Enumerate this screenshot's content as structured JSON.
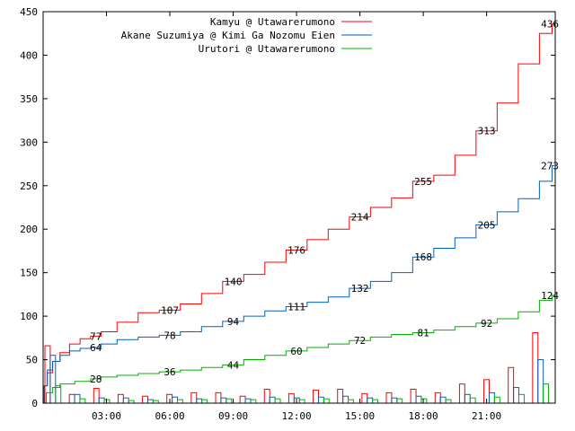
{
  "chart_data": {
    "type": "line",
    "title": "",
    "xlabel": "",
    "ylabel": "",
    "x_unit": "hours since 00:00",
    "xlim": [
      0,
      24.25
    ],
    "ylim": [
      0,
      450
    ],
    "grid": false,
    "legend_position": "top-right",
    "x_ticks": [
      {
        "value": 3,
        "label": "03:00"
      },
      {
        "value": 6,
        "label": "06:00"
      },
      {
        "value": 9,
        "label": "09:00"
      },
      {
        "value": 12,
        "label": "12:00"
      },
      {
        "value": 15,
        "label": "15:00"
      },
      {
        "value": 18,
        "label": "18:00"
      },
      {
        "value": 21,
        "label": "21:00"
      }
    ],
    "y_ticks": [
      0,
      50,
      100,
      150,
      200,
      250,
      300,
      350,
      400,
      450
    ],
    "series": [
      {
        "name": "Kamyu @ Utawarerumono",
        "color": "#ff0000",
        "points": [
          [
            0,
            0
          ],
          [
            0.1,
            20
          ],
          [
            0.3,
            35
          ],
          [
            0.6,
            48
          ],
          [
            1,
            58
          ],
          [
            1.5,
            68
          ],
          [
            2,
            74
          ],
          [
            2.5,
            77
          ],
          [
            3,
            82
          ],
          [
            4,
            93
          ],
          [
            5,
            104
          ],
          [
            6,
            107
          ],
          [
            7,
            114
          ],
          [
            8,
            126
          ],
          [
            9,
            140
          ],
          [
            10,
            148
          ],
          [
            11,
            162
          ],
          [
            12,
            176
          ],
          [
            13,
            188
          ],
          [
            14,
            200
          ],
          [
            15,
            214
          ],
          [
            16,
            225
          ],
          [
            17,
            236
          ],
          [
            18,
            255
          ],
          [
            19,
            262
          ],
          [
            20,
            285
          ],
          [
            21,
            313
          ],
          [
            22,
            345
          ],
          [
            23,
            390
          ],
          [
            24,
            425
          ],
          [
            24.2,
            436
          ]
        ],
        "labels": [
          [
            2.5,
            77
          ],
          [
            6,
            107
          ],
          [
            9,
            140
          ],
          [
            12,
            176
          ],
          [
            15,
            214
          ],
          [
            18,
            255
          ],
          [
            21,
            313
          ],
          [
            24.0,
            436
          ]
        ],
        "bars": [
          66,
          10,
          17,
          10,
          8,
          10,
          12,
          12,
          8,
          16,
          11,
          15,
          16,
          11,
          12,
          16,
          12,
          22,
          27,
          41,
          81
        ]
      },
      {
        "name": "Akane Suzumiya @ Kimi Ga Nozomu Eien",
        "color": "#0060c0",
        "points": [
          [
            0,
            0
          ],
          [
            0.1,
            20
          ],
          [
            0.3,
            38
          ],
          [
            0.6,
            48
          ],
          [
            1,
            55
          ],
          [
            1.5,
            60
          ],
          [
            2,
            63
          ],
          [
            2.5,
            64
          ],
          [
            3,
            68
          ],
          [
            4,
            73
          ],
          [
            5,
            76
          ],
          [
            6,
            78
          ],
          [
            7,
            82
          ],
          [
            8,
            88
          ],
          [
            9,
            94
          ],
          [
            10,
            100
          ],
          [
            11,
            106
          ],
          [
            12,
            111
          ],
          [
            13,
            116
          ],
          [
            14,
            122
          ],
          [
            15,
            132
          ],
          [
            16,
            140
          ],
          [
            17,
            150
          ],
          [
            18,
            168
          ],
          [
            19,
            178
          ],
          [
            20,
            190
          ],
          [
            21,
            205
          ],
          [
            22,
            220
          ],
          [
            23,
            235
          ],
          [
            24,
            255
          ],
          [
            24.2,
            273
          ]
        ],
        "labels": [
          [
            2.5,
            64
          ],
          [
            6,
            78
          ],
          [
            9,
            94
          ],
          [
            12,
            111
          ],
          [
            15,
            132
          ],
          [
            18,
            168
          ],
          [
            21,
            205
          ],
          [
            24.0,
            273
          ]
        ],
        "bars": [
          55,
          10,
          6,
          6,
          4,
          7,
          5,
          6,
          5,
          7,
          6,
          7,
          8,
          6,
          6,
          8,
          7,
          10,
          12,
          18,
          50
        ]
      },
      {
        "name": "Urutori @ Utawarerumono",
        "color": "#00b000",
        "points": [
          [
            0,
            0
          ],
          [
            0.3,
            12
          ],
          [
            0.6,
            18
          ],
          [
            1,
            22
          ],
          [
            2,
            25
          ],
          [
            2.5,
            28
          ],
          [
            3,
            30
          ],
          [
            4,
            32
          ],
          [
            5,
            34
          ],
          [
            6,
            36
          ],
          [
            7,
            38
          ],
          [
            8,
            41
          ],
          [
            9,
            44
          ],
          [
            10,
            50
          ],
          [
            11,
            55
          ],
          [
            12,
            60
          ],
          [
            13,
            64
          ],
          [
            14,
            68
          ],
          [
            15,
            72
          ],
          [
            16,
            76
          ],
          [
            17,
            79
          ],
          [
            18,
            81
          ],
          [
            19,
            84
          ],
          [
            20,
            88
          ],
          [
            21,
            92
          ],
          [
            22,
            97
          ],
          [
            23,
            105
          ],
          [
            24,
            118
          ],
          [
            24.2,
            124
          ]
        ],
        "labels": [
          [
            2.5,
            28
          ],
          [
            6,
            36
          ],
          [
            9,
            44
          ],
          [
            12,
            60
          ],
          [
            15,
            72
          ],
          [
            18,
            81
          ],
          [
            21,
            92
          ],
          [
            24.0,
            124
          ]
        ],
        "bars": [
          20,
          5,
          4,
          3,
          3,
          4,
          4,
          5,
          4,
          5,
          4,
          5,
          4,
          4,
          5,
          5,
          4,
          6,
          7,
          10,
          22
        ]
      }
    ]
  }
}
